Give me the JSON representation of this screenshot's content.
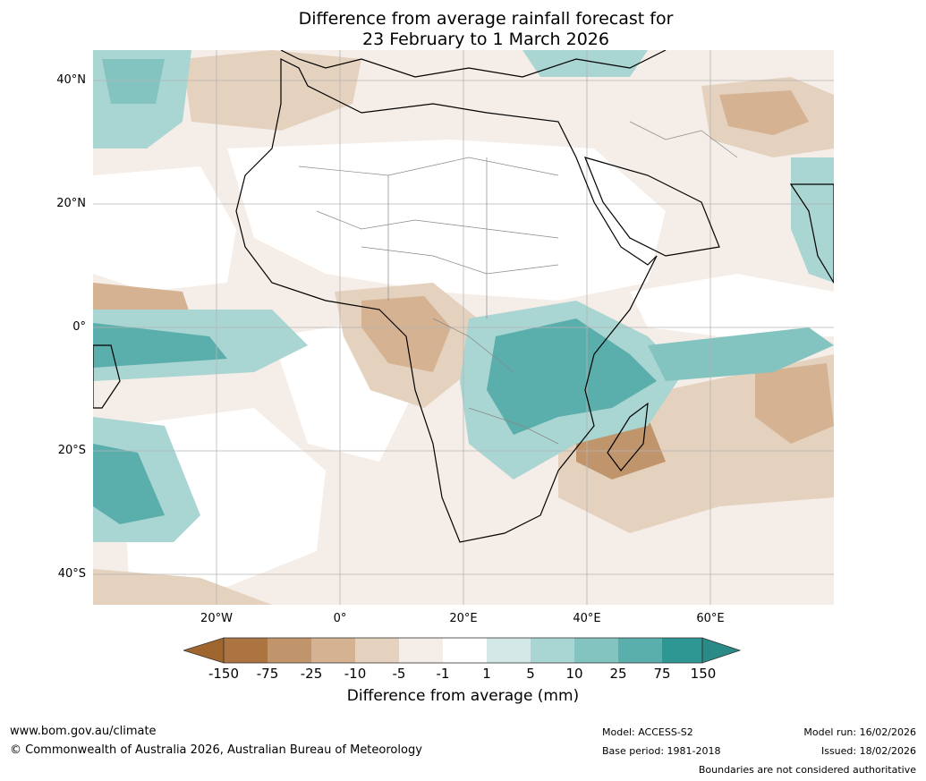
{
  "title": {
    "line1": "Difference from average rainfall forecast for",
    "line2": "23 February to 1 March 2026"
  },
  "map": {
    "lat_labels": [
      "40°N",
      "20°N",
      "0°",
      "20°S",
      "40°S"
    ],
    "lon_labels": [
      "20°W",
      "0°",
      "20°E",
      "40°E",
      "60°E"
    ],
    "projection_extent": {
      "lon": [
        -40,
        80
      ],
      "lat": [
        -45,
        45
      ]
    }
  },
  "legend": {
    "ticks": [
      "-150",
      "-75",
      "-25",
      "-10",
      "-5",
      "-1",
      "1",
      "5",
      "10",
      "25",
      "75",
      "150"
    ],
    "colors": [
      "#ab7440",
      "#c0956c",
      "#d4b292",
      "#e4d1be",
      "#f5ede7",
      "#ffffff",
      "#d4e9e7",
      "#a9d5d2",
      "#83c3c0",
      "#5aaeab",
      "#2f9793"
    ],
    "extend_low": "#a0662f",
    "extend_high": "#2a8a86",
    "label": "Difference from average (mm)"
  },
  "footer": {
    "url": "www.bom.gov.au/climate",
    "copyright": "© Commonwealth of Australia 2026, Australian Bureau of Meteorology",
    "model": "Model: ACCESS-S2",
    "base_period": "Base period: 1981-2018",
    "model_run": "Model run: 16/02/2026",
    "issued": "Issued: 18/02/2026",
    "disclaimer": "Boundaries are not considered authoritative"
  }
}
